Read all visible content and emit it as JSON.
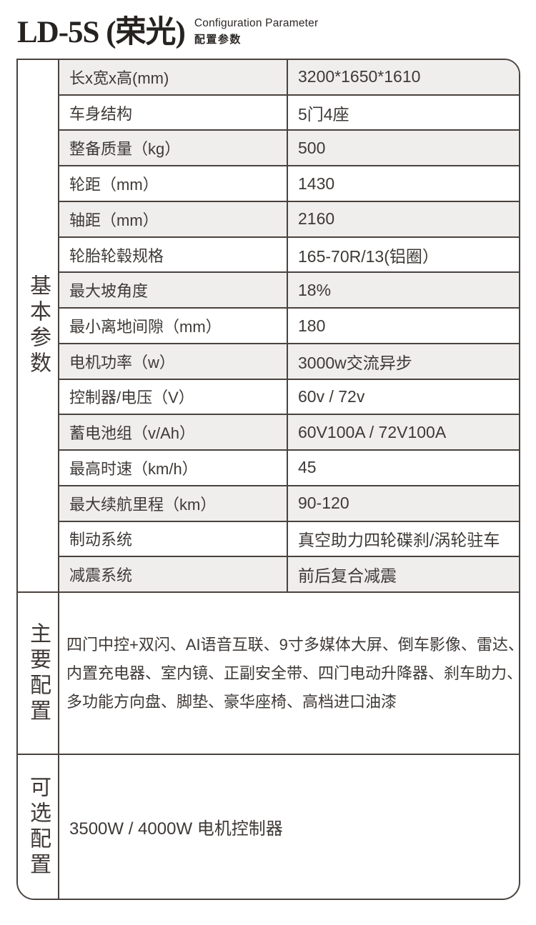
{
  "header": {
    "title": "LD-5S (荣光)",
    "subtitle_en": "Configuration Parameter",
    "subtitle_cn": "配置参数"
  },
  "table": {
    "sections": {
      "basic": {
        "label": "基本参数",
        "rows": [
          {
            "label": "长x宽x高(mm)",
            "value": "3200*1650*1610"
          },
          {
            "label": "车身结构",
            "value": "5门4座"
          },
          {
            "label": "整备质量（kg）",
            "value": "500"
          },
          {
            "label": "轮距（mm）",
            "value": "1430"
          },
          {
            "label": "轴距（mm）",
            "value": "2160"
          },
          {
            "label": "轮胎轮毂规格",
            "value": "165-70R/13(铝圈）"
          },
          {
            "label": "最大坡角度",
            "value": "18%"
          },
          {
            "label": "最小离地间隙（mm）",
            "value": "180"
          },
          {
            "label": "电机功率（w）",
            "value": "3000w交流异步"
          },
          {
            "label": "控制器/电压（V）",
            "value": "60v / 72v"
          },
          {
            "label": "蓄电池组（v/Ah）",
            "value": "60V100A / 72V100A"
          },
          {
            "label": "最高时速（km/h）",
            "value": "45"
          },
          {
            "label": "最大续航里程（km）",
            "value": "90-120"
          },
          {
            "label": "制动系统",
            "value": "真空助力四轮碟刹/涡轮驻车"
          },
          {
            "label": "减震系统",
            "value": "前后复合减震"
          }
        ]
      },
      "main": {
        "label": "主要配置",
        "lines": [
          "四门中控+双闪、AI语音互联、9寸多媒体大屏、倒车影像、雷达、",
          "内置充电器、室内镜、正副安全带、四门电动升降器、刹车助力、",
          "多功能方向盘、脚垫、豪华座椅、高档进口油漆"
        ]
      },
      "optional": {
        "label": "可选配置",
        "content": "3500W / 4000W 电机控制器"
      }
    }
  },
  "colors": {
    "border": "#4a423e",
    "row_shade": "#efeeec",
    "text": "#3e3936"
  }
}
